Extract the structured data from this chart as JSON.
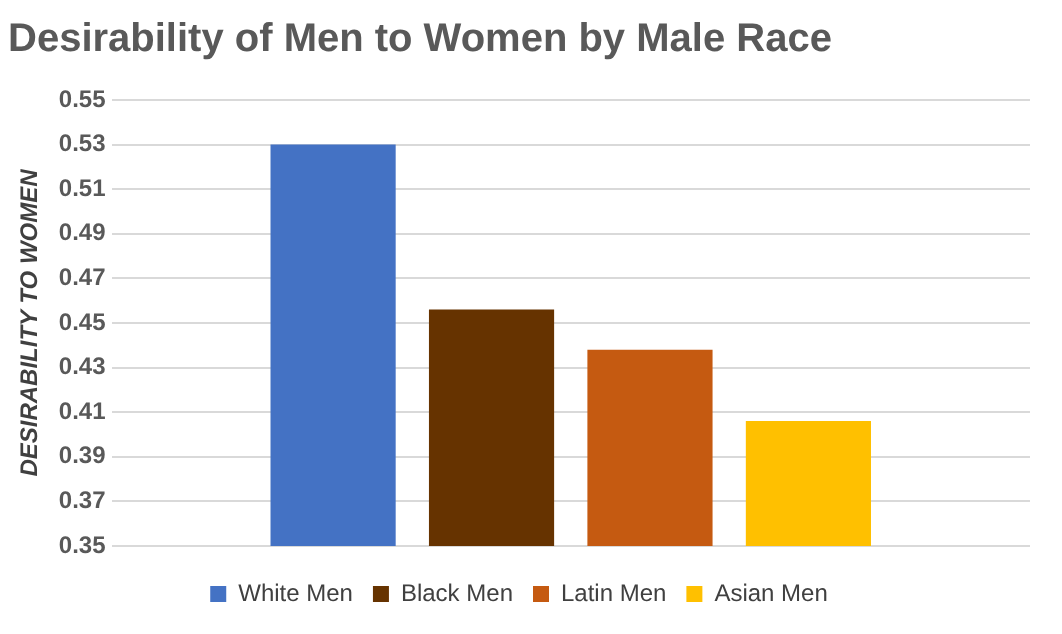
{
  "chart_data": {
    "type": "bar",
    "title": "Desirability of Men to Women by Male Race",
    "ylabel": "DESIRABILITY TO WOMEN",
    "categories": [
      null
    ],
    "series": [
      {
        "name": "White Men",
        "color": "#4472c4",
        "values": [
          0.53
        ]
      },
      {
        "name": "Black Men",
        "color": "#663300",
        "values": [
          0.456
        ]
      },
      {
        "name": "Latin Men",
        "color": "#c55a11",
        "values": [
          0.438
        ]
      },
      {
        "name": "Asian Men",
        "color": "#ffc000",
        "values": [
          0.406
        ]
      }
    ],
    "ylim": [
      0.35,
      0.55
    ],
    "yticks": [
      0.35,
      0.37,
      0.39,
      0.41,
      0.43,
      0.45,
      0.47,
      0.49,
      0.51,
      0.53,
      0.55
    ],
    "grid": "y",
    "legend": "bottom"
  }
}
